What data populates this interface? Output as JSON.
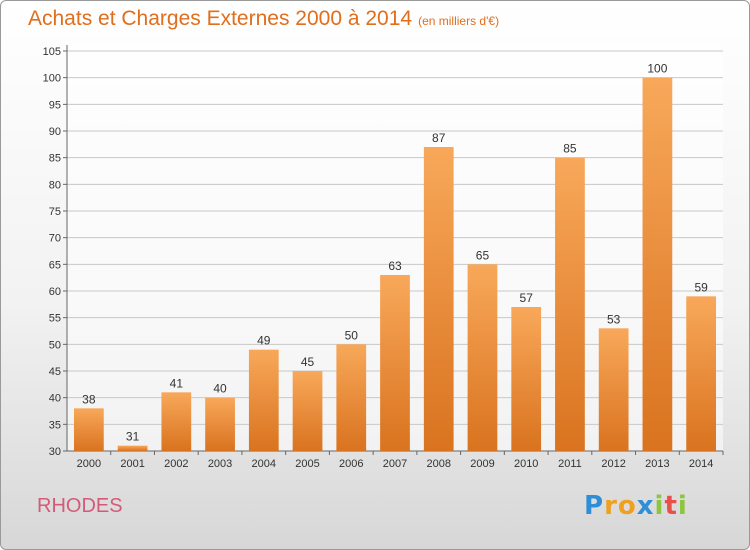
{
  "title": "Achats et Charges Externes 2000 à 2014",
  "subtitle": "(en milliers d'€)",
  "place": "RHODES",
  "logo": {
    "text": "Proxiti",
    "letters": [
      {
        "ch": "P",
        "color": "#2f8fd6"
      },
      {
        "ch": "r",
        "color": "#f0a020"
      },
      {
        "ch": "o",
        "color": "#f0a020"
      },
      {
        "ch": "x",
        "color": "#2f8fd6"
      },
      {
        "ch": "i",
        "color": "#8cc63f"
      },
      {
        "ch": "t",
        "color": "#e8504a"
      },
      {
        "ch": "i",
        "color": "#8cc63f"
      }
    ]
  },
  "colors": {
    "bar_top": "#f8a85a",
    "bar_bottom": "#d9731f",
    "title": "#e16e1c",
    "place": "#d55a78",
    "grid": "#c8c8c8",
    "axis_text": "#333333"
  },
  "chart_data": {
    "type": "bar",
    "categories": [
      "2000",
      "2001",
      "2002",
      "2003",
      "2004",
      "2005",
      "2006",
      "2007",
      "2008",
      "2009",
      "2010",
      "2011",
      "2012",
      "2013",
      "2014"
    ],
    "values": [
      38,
      31,
      41,
      40,
      49,
      45,
      50,
      63,
      87,
      65,
      57,
      85,
      53,
      100,
      59
    ],
    "ylim": [
      30,
      105
    ],
    "yticks": [
      30,
      35,
      40,
      45,
      50,
      55,
      60,
      65,
      70,
      75,
      80,
      85,
      90,
      95,
      100,
      105
    ],
    "grid": true,
    "data_labels": true
  }
}
